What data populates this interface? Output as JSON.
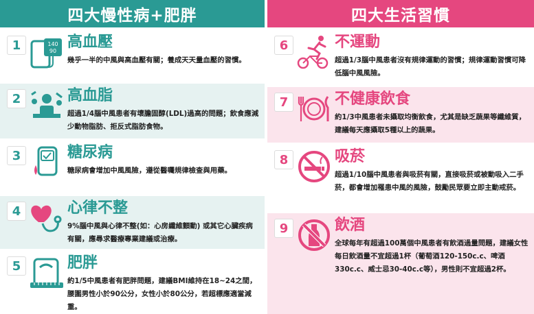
{
  "left": {
    "header": "四大慢性病+肥胖",
    "accent": "#2a9a94",
    "items": [
      {
        "num": "1",
        "title": "高血壓",
        "icon": "blood-pressure-monitor-icon",
        "desc": "幾乎一半的中風與高血壓有關；養成天天量血壓的習慣。",
        "monitor_top": "140",
        "monitor_bottom": "90"
      },
      {
        "num": "2",
        "title": "高血脂",
        "icon": "fatty-food-icon",
        "desc": "超過1/4腦中風患者有壞膽固醇(LDL)過高的問題；飲食應減少動物脂肪、拒反式脂肪食物。"
      },
      {
        "num": "3",
        "title": "糖尿病",
        "icon": "glucose-meter-icon",
        "desc": "糖尿病會增加中風風險，遵從醫囑規律檢查與用藥。"
      },
      {
        "num": "4",
        "title": "心律不整",
        "icon": "heart-stethoscope-icon",
        "desc": "9%腦中風與心律不整(如：心房纖維顫動) 或其它心臟疾病有關，應尋求醫療專業建議或治療。"
      },
      {
        "num": "5",
        "title": "肥胖",
        "icon": "scale-tape-icon",
        "desc": "約1/5中風患者有肥胖問題，建議BMI維持在18~24之間，腰圍男性小於90公分，女性小於80公分，若超標應適當減重。"
      }
    ]
  },
  "right": {
    "header": "四大生活習慣",
    "accent": "#e5477f",
    "items": [
      {
        "num": "6",
        "title": "不運動",
        "icon": "cycling-runner-icon",
        "desc": "超過1/3腦中風患者沒有規律運動的習慣；規律運動習慣可降低腦中風風險。"
      },
      {
        "num": "7",
        "title": "不健康飲食",
        "icon": "plate-cutlery-icon",
        "desc": "約1/3中風患者未攝取均衡飲食，尤其是缺乏蔬果等纖維質，建議每天應攝取5種以上的蔬果。"
      },
      {
        "num": "8",
        "title": "吸菸",
        "icon": "no-smoking-icon",
        "desc": "超過1/10腦中風患者與吸菸有關，直接吸菸或被動吸入二手菸，都會增加罹患中風的風險，鼓勵民眾要立即主動戒菸。"
      },
      {
        "num": "9",
        "title": "飲酒",
        "icon": "no-alcohol-icon",
        "desc": "全球每年有超過100萬個中風患者有飲酒過量問題，建議女性每日飲酒量不宜超過1杯（葡萄酒120-150c.c、啤酒330c.c、威士忌30-40c.c等），男性則不宜超過2杯。"
      }
    ]
  }
}
